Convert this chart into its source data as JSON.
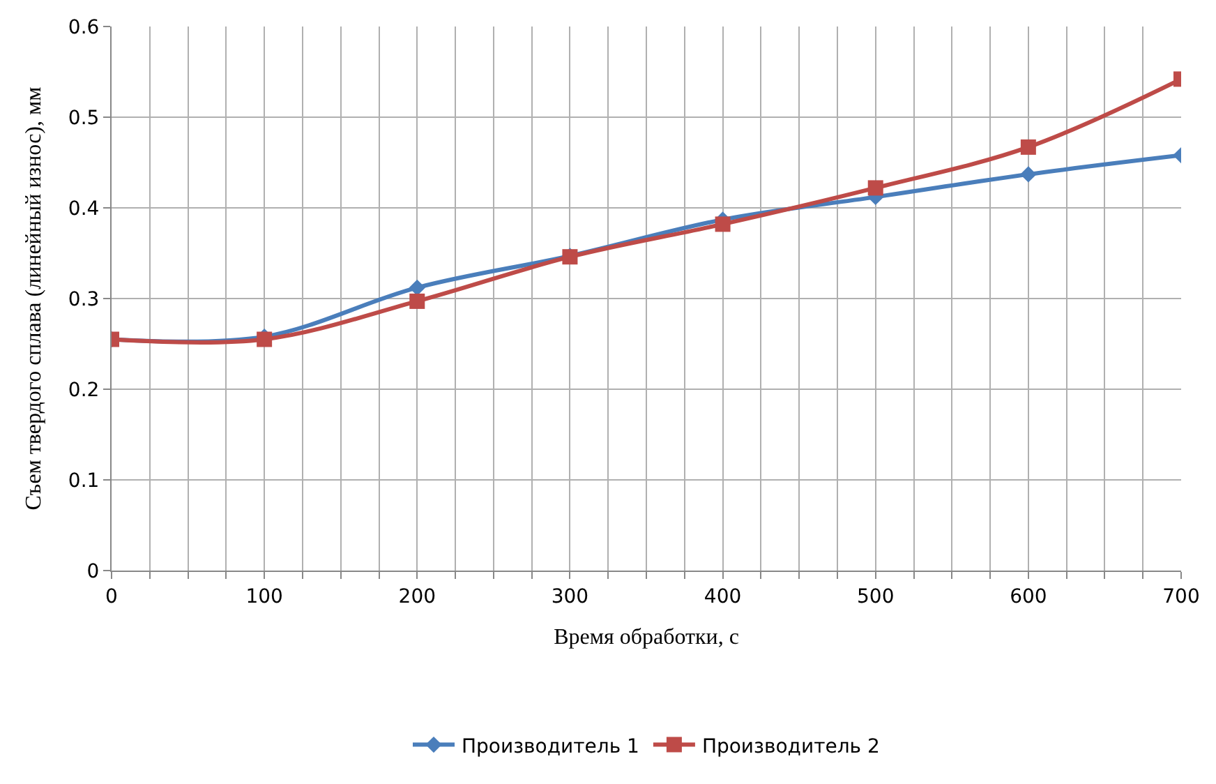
{
  "chart_data": {
    "type": "line",
    "xlabel": "Время обработки, с",
    "ylabel": "Съем твердого сплава (линейный износ), мм",
    "x": [
      0,
      100,
      200,
      300,
      400,
      500,
      600,
      700
    ],
    "series": [
      {
        "name": "Производитель 1",
        "color": "#4a7ebb",
        "marker": "diamond",
        "values": [
          0.255,
          0.258,
          0.312,
          0.347,
          0.387,
          0.412,
          0.437,
          0.458
        ]
      },
      {
        "name": "Производитель 2",
        "color": "#be4b48",
        "marker": "square",
        "values": [
          0.255,
          0.255,
          0.297,
          0.346,
          0.382,
          0.422,
          0.467,
          0.542
        ]
      }
    ],
    "xlim": [
      0,
      700
    ],
    "xticks": [
      0,
      {
        "value": 25,
        "label": null
      },
      {
        "value": 50,
        "label": null
      },
      {
        "value": 75,
        "label": null
      },
      100,
      {
        "value": 125,
        "label": null
      },
      {
        "value": 150,
        "label": null
      },
      {
        "value": 175,
        "label": null
      },
      200,
      {
        "value": 225,
        "label": null
      },
      {
        "value": 250,
        "label": null
      },
      {
        "value": 275,
        "label": null
      },
      300,
      {
        "value": 325,
        "label": null
      },
      {
        "value": 350,
        "label": null
      },
      {
        "value": 375,
        "label": null
      },
      400,
      {
        "value": 425,
        "label": null
      },
      {
        "value": 450,
        "label": null
      },
      {
        "value": 475,
        "label": null
      },
      500,
      {
        "value": 525,
        "label": null
      },
      {
        "value": 550,
        "label": null
      },
      {
        "value": 575,
        "label": null
      },
      600,
      {
        "value": 625,
        "label": null
      },
      {
        "value": 650,
        "label": null
      },
      {
        "value": 675,
        "label": null
      },
      700
    ],
    "ylim": [
      0,
      0.6
    ],
    "yticks": [
      0,
      0.1,
      0.2,
      0.3,
      0.4,
      0.5,
      0.6
    ],
    "grid": true,
    "legend": "bottom",
    "line_style": "solid"
  }
}
